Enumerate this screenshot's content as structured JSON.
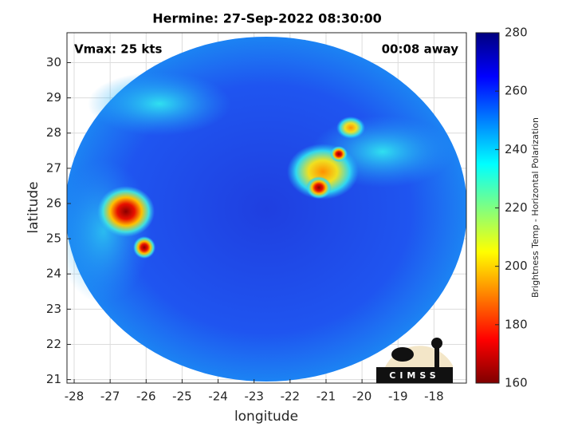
{
  "chart_data": {
    "type": "image",
    "title": "Hermine: 27-Sep-2022 08:30:00",
    "xlabel": "longitude",
    "ylabel": "latitude",
    "annotations": [
      "Vmax: 25 kts",
      "00:08 away"
    ],
    "logo_text": "CIMSS",
    "xlim": [
      -28.2,
      -17.1
    ],
    "ylim": [
      20.9,
      30.85
    ],
    "xticks": [
      -28,
      -27,
      -26,
      -25,
      -24,
      -23,
      -22,
      -21,
      -20,
      -19,
      -18
    ],
    "yticks": [
      21,
      22,
      23,
      24,
      25,
      26,
      27,
      28,
      29,
      30
    ],
    "grid": true,
    "colorbar": {
      "label": "Brightness Temp - Horizontal Polarization",
      "lim": [
        160,
        280
      ],
      "ticks": [
        160,
        180,
        200,
        220,
        240,
        260,
        280
      ],
      "colormap": [
        "#7f0000",
        "#ff0000",
        "#ff8000",
        "#ffff00",
        "#80ff80",
        "#00ffff",
        "#0080ff",
        "#0000ff",
        "#00007f"
      ]
    }
  }
}
